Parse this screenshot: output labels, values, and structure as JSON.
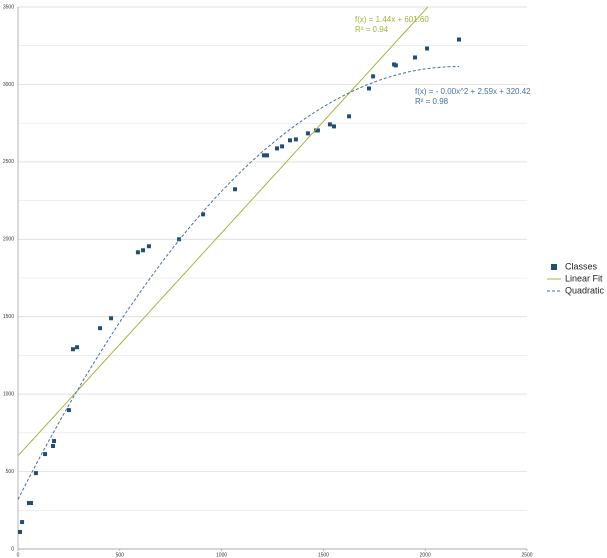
{
  "chart_data": {
    "type": "scatter",
    "xlim": [
      0,
      2500
    ],
    "xticks": [
      0,
      500,
      1000,
      1500,
      2000,
      2500
    ],
    "ylim": [
      0,
      3500
    ],
    "yticks": [
      0,
      500,
      1000,
      1500,
      2000,
      2500,
      3000,
      3500
    ],
    "y_minor_grid": [
      250,
      750,
      1250,
      1750,
      2250,
      2750,
      3250
    ],
    "grid": true,
    "legend": "right",
    "series": [
      {
        "name": "Classes",
        "color": "#1f4e79",
        "x": [
          10,
          20,
          54,
          64,
          88,
          133,
          172,
          177,
          250,
          270,
          290,
          403,
          457,
          589,
          614,
          643,
          791,
          909,
          1066,
          1208,
          1223,
          1272,
          1297,
          1336,
          1365,
          1424,
          1464,
          1473,
          1532,
          1552,
          1626,
          1724,
          1744,
          1847,
          1856,
          1950,
          2009,
          2166
        ],
        "values": [
          110,
          174,
          297,
          297,
          490,
          613,
          665,
          697,
          897,
          1290,
          1303,
          1426,
          1490,
          1916,
          1929,
          1955,
          2000,
          2161,
          2323,
          2542,
          2542,
          2587,
          2600,
          2639,
          2645,
          2684,
          2703,
          2703,
          2742,
          2729,
          2794,
          2974,
          3052,
          3129,
          3123,
          3174,
          3232,
          3290
        ]
      },
      {
        "name": "Linear Fit",
        "color": "#a4b43c",
        "coefficients": [
          1.44,
          601.6
        ],
        "x_range": [
          0,
          2013
        ],
        "equation": "f(x) = 1.44x + 601.60",
        "r2": "R² = 0.94"
      },
      {
        "name": "Quadratic Fit",
        "color": "#4a6f9e",
        "coefficients": [
          -0.0006,
          2.59,
          320.42
        ],
        "x_range": [
          0,
          2166
        ],
        "equation": "f(x) =  - 0.00x^2 + 2.59x + 320.42",
        "r2": "R² = 0.98"
      }
    ]
  }
}
